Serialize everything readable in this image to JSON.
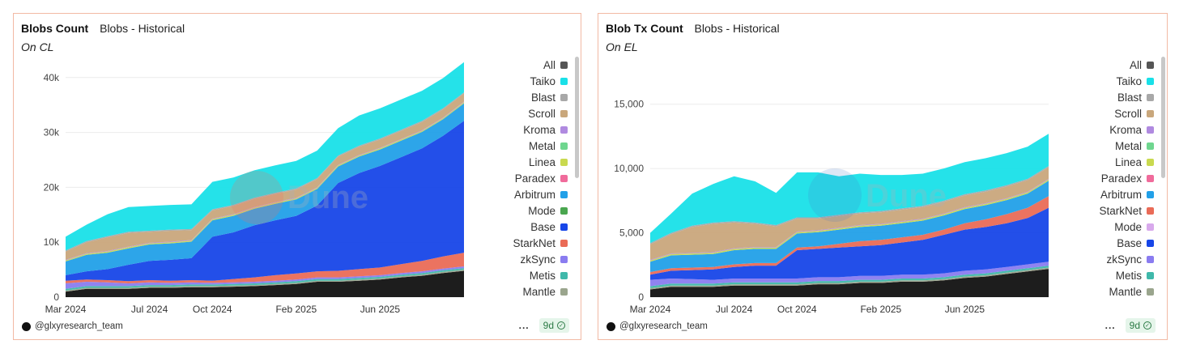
{
  "chart_data": [
    {
      "type": "area",
      "title": "Blobs Count",
      "subtitle_tag": "Blobs - Historical",
      "note": "On CL",
      "xlabel": "",
      "ylabel": "",
      "ylim": [
        0,
        41000
      ],
      "ytick_values": [
        0,
        10000,
        20000,
        30000,
        40000
      ],
      "ytick_labels": [
        "0",
        "10k",
        "20k",
        "30k",
        "40k"
      ],
      "xtick_labels": [
        "Mar 2024",
        "Jul 2024",
        "Oct 2024",
        "Feb 2025",
        "Jun 2025"
      ],
      "x_index_ticks": [
        0,
        4,
        7,
        11,
        15
      ],
      "x": [
        "Mar 2024",
        "Apr 2024",
        "May 2024",
        "Jun 2024",
        "Jul 2024",
        "Aug 2024",
        "Sep 2024",
        "Oct 2024",
        "Nov 2024",
        "Dec 2024",
        "Jan 2025",
        "Feb 2025",
        "Mar 2025",
        "Apr 2025",
        "May 2025",
        "Jun 2025",
        "Jul 2025",
        "Aug 2025",
        "Sep 2025",
        "Oct 2025"
      ],
      "series": [
        {
          "name": "All",
          "color": "#111111",
          "values": [
            1000,
            1500,
            1500,
            1500,
            1700,
            1700,
            1800,
            1800,
            1900,
            2000,
            2200,
            2400,
            2800,
            2800,
            3000,
            3200,
            3600,
            3900,
            4400,
            4800
          ]
        },
        {
          "name": "Mantle",
          "color": "#9aa58d",
          "values": [
            200,
            200,
            200,
            200,
            200,
            200,
            200,
            200,
            200,
            200,
            200,
            200,
            200,
            200,
            200,
            200,
            200,
            200,
            200,
            200
          ]
        },
        {
          "name": "Metis",
          "color": "#3fb8aa",
          "values": [
            300,
            300,
            300,
            300,
            300,
            300,
            300,
            300,
            300,
            300,
            300,
            300,
            300,
            300,
            300,
            300,
            300,
            300,
            300,
            300
          ]
        },
        {
          "name": "zkSync",
          "color": "#8a7cf0",
          "values": [
            1000,
            800,
            700,
            500,
            500,
            400,
            400,
            300,
            300,
            300,
            300,
            300,
            300,
            300,
            300,
            300,
            300,
            300,
            300,
            300
          ]
        },
        {
          "name": "StarkNet",
          "color": "#ea6b57",
          "values": [
            500,
            400,
            400,
            400,
            400,
            400,
            400,
            400,
            600,
            800,
            1000,
            1100,
            1100,
            1200,
            1300,
            1400,
            1600,
            1900,
            2200,
            2500
          ]
        },
        {
          "name": "Base",
          "color": "#1746e8",
          "values": [
            1000,
            1500,
            2000,
            3000,
            3500,
            3800,
            4000,
            8000,
            8500,
            9500,
            10000,
            10500,
            12000,
            16000,
            17500,
            18500,
            19500,
            20500,
            22000,
            24000
          ]
        },
        {
          "name": "Mode",
          "color": "#4aa64f",
          "values": [
            0,
            0,
            0,
            0,
            0,
            0,
            0,
            0,
            0,
            0,
            0,
            0,
            0,
            0,
            0,
            0,
            0,
            0,
            0,
            0
          ]
        },
        {
          "name": "Arbitrum",
          "color": "#22a0e8",
          "values": [
            2500,
            3000,
            3000,
            3000,
            3000,
            3000,
            3000,
            3000,
            3000,
            3000,
            3000,
            3000,
            3000,
            3000,
            3000,
            3000,
            3000,
            3000,
            3000,
            3200
          ]
        },
        {
          "name": "Paradex",
          "color": "#f06b9b",
          "values": [
            0,
            0,
            0,
            0,
            0,
            0,
            0,
            0,
            0,
            0,
            0,
            0,
            0,
            0,
            0,
            0,
            0,
            0,
            0,
            0
          ]
        },
        {
          "name": "Linea",
          "color": "#c9d94f",
          "values": [
            200,
            200,
            200,
            200,
            200,
            200,
            200,
            200,
            200,
            200,
            200,
            200,
            200,
            200,
            200,
            200,
            200,
            200,
            200,
            200
          ]
        },
        {
          "name": "Metal",
          "color": "#6fd68f",
          "values": [
            0,
            0,
            0,
            0,
            0,
            0,
            0,
            0,
            0,
            0,
            0,
            0,
            0,
            0,
            0,
            0,
            0,
            0,
            0,
            0
          ]
        },
        {
          "name": "Kroma",
          "color": "#b08ae0",
          "values": [
            100,
            100,
            100,
            100,
            100,
            100,
            100,
            100,
            100,
            100,
            100,
            100,
            100,
            100,
            100,
            100,
            100,
            100,
            100,
            100
          ]
        },
        {
          "name": "Scroll",
          "color": "#c9a77c",
          "values": [
            1500,
            2000,
            2500,
            2500,
            2000,
            2000,
            1800,
            1500,
            1500,
            1500,
            1500,
            1500,
            1500,
            1500,
            1500,
            1500,
            1500,
            1500,
            1500,
            1500
          ]
        },
        {
          "name": "Blast",
          "color": "#a8a8a8",
          "values": [
            200,
            200,
            200,
            200,
            200,
            200,
            200,
            200,
            200,
            200,
            200,
            200,
            200,
            200,
            200,
            200,
            200,
            200,
            200,
            200
          ]
        },
        {
          "name": "Taiko",
          "color": "#19e0e8",
          "values": [
            2500,
            3000,
            4000,
            4500,
            4500,
            4500,
            4500,
            5000,
            5000,
            5000,
            5000,
            5000,
            5000,
            5000,
            5500,
            5500,
            5500,
            5500,
            5500,
            5500
          ]
        }
      ]
    },
    {
      "type": "area",
      "title": "Blob Tx Count",
      "subtitle_tag": "Blobs - Historical",
      "note": "On EL",
      "xlabel": "",
      "ylabel": "",
      "ylim": [
        0,
        17500
      ],
      "ytick_values": [
        0,
        5000,
        10000,
        15000
      ],
      "ytick_labels": [
        "0",
        "5,000",
        "10,000",
        "15,000"
      ],
      "xtick_labels": [
        "Mar 2024",
        "Jul 2024",
        "Oct 2024",
        "Feb 2025",
        "Jun 2025"
      ],
      "x_index_ticks": [
        0,
        4,
        7,
        11,
        15
      ],
      "x": [
        "Mar 2024",
        "Apr 2024",
        "May 2024",
        "Jun 2024",
        "Jul 2024",
        "Aug 2024",
        "Sep 2024",
        "Oct 2024",
        "Nov 2024",
        "Dec 2024",
        "Jan 2025",
        "Feb 2025",
        "Mar 2025",
        "Apr 2025",
        "May 2025",
        "Jun 2025",
        "Jul 2025",
        "Aug 2025",
        "Sep 2025",
        "Oct 2025"
      ],
      "series": [
        {
          "name": "All",
          "color": "#111111",
          "values": [
            600,
            800,
            800,
            800,
            900,
            900,
            900,
            900,
            1000,
            1000,
            1100,
            1100,
            1200,
            1200,
            1300,
            1500,
            1600,
            1800,
            2000,
            2200
          ]
        },
        {
          "name": "Mantle",
          "color": "#9aa58d",
          "values": [
            100,
            100,
            100,
            100,
            100,
            100,
            100,
            100,
            100,
            100,
            100,
            100,
            100,
            100,
            100,
            100,
            100,
            100,
            100,
            100
          ]
        },
        {
          "name": "Metis",
          "color": "#3fb8aa",
          "values": [
            150,
            150,
            150,
            150,
            150,
            150,
            150,
            150,
            150,
            150,
            150,
            150,
            150,
            150,
            150,
            150,
            150,
            150,
            150,
            150
          ]
        },
        {
          "name": "zkSync",
          "color": "#8a7cf0",
          "values": [
            500,
            400,
            350,
            300,
            300,
            300,
            300,
            300,
            300,
            300,
            300,
            300,
            300,
            300,
            300,
            300,
            300,
            300,
            300,
            300
          ]
        },
        {
          "name": "Base",
          "color": "#1746e8",
          "values": [
            400,
            600,
            700,
            800,
            900,
            1000,
            1000,
            2200,
            2200,
            2300,
            2300,
            2400,
            2500,
            2700,
            3000,
            3200,
            3300,
            3400,
            3600,
            4200
          ]
        },
        {
          "name": "Mode",
          "color": "#d8a9ec",
          "values": [
            0,
            0,
            0,
            0,
            0,
            0,
            0,
            0,
            0,
            0,
            0,
            0,
            0,
            0,
            0,
            0,
            0,
            0,
            0,
            0
          ]
        },
        {
          "name": "StarkNet",
          "color": "#ea6b57",
          "values": [
            200,
            200,
            200,
            200,
            200,
            200,
            200,
            200,
            200,
            300,
            400,
            400,
            400,
            400,
            400,
            500,
            600,
            700,
            800,
            900
          ]
        },
        {
          "name": "Arbitrum",
          "color": "#22a0e8",
          "values": [
            800,
            1000,
            1000,
            1000,
            1100,
            1100,
            1100,
            1100,
            1100,
            1100,
            1100,
            1100,
            1100,
            1100,
            1100,
            1100,
            1100,
            1100,
            1100,
            1200
          ]
        },
        {
          "name": "Paradex",
          "color": "#f06b9b",
          "values": [
            0,
            0,
            0,
            0,
            0,
            0,
            0,
            0,
            0,
            0,
            0,
            0,
            0,
            0,
            0,
            0,
            0,
            0,
            0,
            0
          ]
        },
        {
          "name": "Linea",
          "color": "#c9d94f",
          "values": [
            100,
            100,
            100,
            100,
            100,
            100,
            100,
            100,
            100,
            100,
            100,
            100,
            100,
            100,
            100,
            100,
            100,
            100,
            100,
            100
          ]
        },
        {
          "name": "Metal",
          "color": "#6fd68f",
          "values": [
            0,
            0,
            0,
            0,
            0,
            0,
            0,
            0,
            0,
            0,
            0,
            0,
            0,
            0,
            0,
            0,
            0,
            0,
            0,
            0
          ]
        },
        {
          "name": "Kroma",
          "color": "#b08ae0",
          "values": [
            50,
            50,
            50,
            50,
            50,
            50,
            50,
            50,
            50,
            50,
            50,
            50,
            50,
            50,
            50,
            50,
            50,
            50,
            50,
            50
          ]
        },
        {
          "name": "Scroll",
          "color": "#c9a77c",
          "values": [
            1200,
            1500,
            2000,
            2200,
            2000,
            1800,
            1600,
            1000,
            900,
            900,
            900,
            900,
            900,
            900,
            900,
            900,
            900,
            900,
            900,
            900
          ]
        },
        {
          "name": "Blast",
          "color": "#a8a8a8",
          "values": [
            100,
            100,
            100,
            100,
            100,
            100,
            100,
            100,
            100,
            100,
            100,
            100,
            100,
            100,
            100,
            100,
            100,
            100,
            100,
            100
          ]
        },
        {
          "name": "Taiko",
          "color": "#19e0e8",
          "values": [
            800,
            1500,
            2500,
            3000,
            3500,
            3200,
            2500,
            3500,
            3500,
            3000,
            3000,
            2800,
            2600,
            2500,
            2500,
            2500,
            2500,
            2500,
            2500,
            2500
          ]
        }
      ]
    }
  ],
  "left": {
    "title": "Blobs Count",
    "tag": "Blobs - Historical",
    "note": "On CL",
    "legend": [
      {
        "label": "All",
        "color": "#555555"
      },
      {
        "label": "Taiko",
        "color": "#19e0e8"
      },
      {
        "label": "Blast",
        "color": "#a8a8a8"
      },
      {
        "label": "Scroll",
        "color": "#c9a77c"
      },
      {
        "label": "Kroma",
        "color": "#b08ae0"
      },
      {
        "label": "Metal",
        "color": "#6fd68f"
      },
      {
        "label": "Linea",
        "color": "#c9d94f"
      },
      {
        "label": "Paradex",
        "color": "#f06b9b"
      },
      {
        "label": "Arbitrum",
        "color": "#22a0e8"
      },
      {
        "label": "Mode",
        "color": "#4aa64f"
      },
      {
        "label": "Base",
        "color": "#1746e8"
      },
      {
        "label": "StarkNet",
        "color": "#ea6b57"
      },
      {
        "label": "zkSync",
        "color": "#8a7cf0"
      },
      {
        "label": "Metis",
        "color": "#3fb8aa"
      },
      {
        "label": "Mantle",
        "color": "#9aa58d"
      }
    ],
    "author": "@glxyresearch_team",
    "age": "9d",
    "menu": "..."
  },
  "right": {
    "title": "Blob Tx Count",
    "tag": "Blobs - Historical",
    "note": "On EL",
    "legend": [
      {
        "label": "All",
        "color": "#555555"
      },
      {
        "label": "Taiko",
        "color": "#19e0e8"
      },
      {
        "label": "Blast",
        "color": "#a8a8a8"
      },
      {
        "label": "Scroll",
        "color": "#c9a77c"
      },
      {
        "label": "Kroma",
        "color": "#b08ae0"
      },
      {
        "label": "Metal",
        "color": "#6fd68f"
      },
      {
        "label": "Linea",
        "color": "#c9d94f"
      },
      {
        "label": "Paradex",
        "color": "#f06b9b"
      },
      {
        "label": "Arbitrum",
        "color": "#22a0e8"
      },
      {
        "label": "StarkNet",
        "color": "#ea6b57"
      },
      {
        "label": "Mode",
        "color": "#d8a9ec"
      },
      {
        "label": "Base",
        "color": "#1746e8"
      },
      {
        "label": "zkSync",
        "color": "#8a7cf0"
      },
      {
        "label": "Metis",
        "color": "#3fb8aa"
      },
      {
        "label": "Mantle",
        "color": "#9aa58d"
      }
    ],
    "author": "@glxyresearch_team",
    "age": "9d",
    "menu": "..."
  },
  "watermark": "Dune"
}
